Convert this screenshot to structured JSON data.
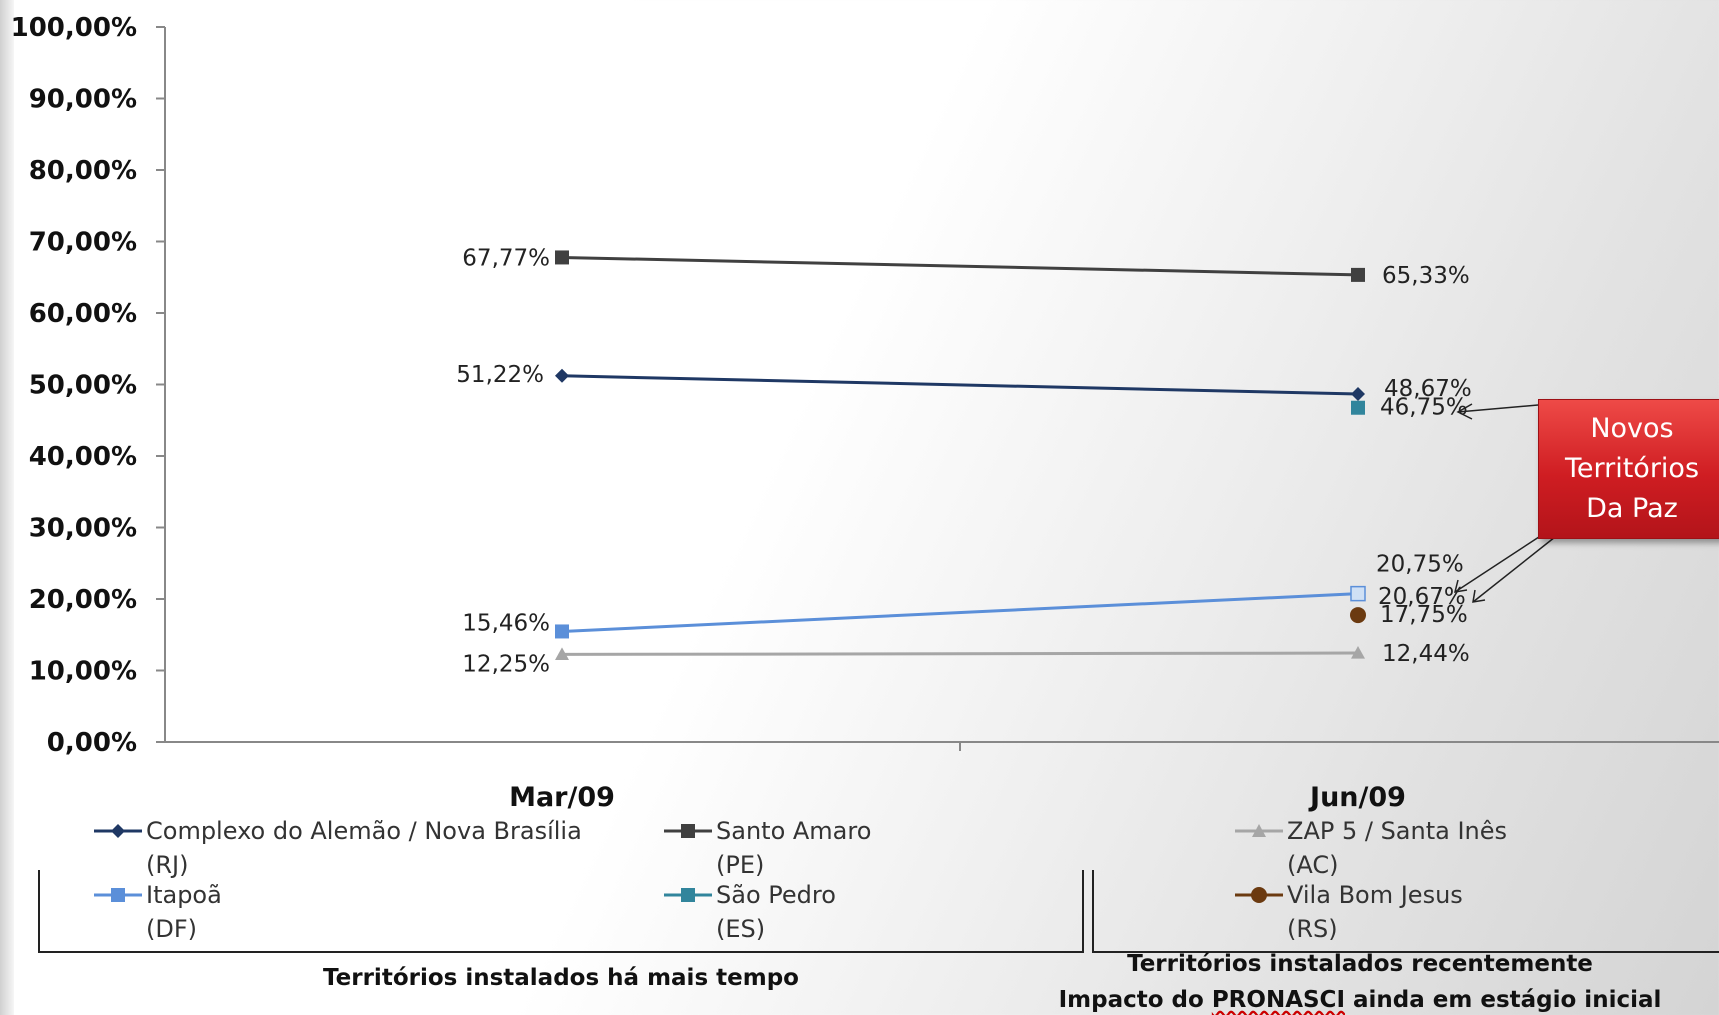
{
  "chart_data": {
    "type": "line",
    "title": "",
    "xlabel": "",
    "ylabel": "",
    "categories": [
      "Mar/09",
      "Jun/09"
    ],
    "ylim": [
      0,
      100
    ],
    "yticks": [
      "0,00%",
      "10,00%",
      "20,00%",
      "30,00%",
      "40,00%",
      "50,00%",
      "60,00%",
      "70,00%",
      "80,00%",
      "90,00%",
      "100,00%"
    ],
    "grid": false,
    "legend_position": "bottom",
    "series": [
      {
        "name": "Complexo do Alemão / Nova Brasília (RJ)",
        "values": [
          51.22,
          48.67
        ],
        "labels": [
          "51,22%",
          "48,67%"
        ],
        "color": "#1f3864",
        "marker": "diamond"
      },
      {
        "name": "Santo Amaro (PE)",
        "values": [
          67.77,
          65.33
        ],
        "labels": [
          "67,77%",
          "65,33%"
        ],
        "color": "#404040",
        "marker": "square"
      },
      {
        "name": "ZAP 5 / Santa Inês (AC)",
        "values": [
          12.25,
          12.44
        ],
        "labels": [
          "12,25%",
          "12,44%"
        ],
        "color": "#a6a6a6",
        "marker": "triangle"
      },
      {
        "name": "Itapoã (DF)",
        "values": [
          15.46,
          20.75
        ],
        "labels": [
          "15,46%",
          "20,75%"
        ],
        "color": "#5b8fd9",
        "marker": "square"
      },
      {
        "name": "São Pedro (ES)",
        "values": [
          null,
          46.75
        ],
        "labels": [
          "",
          "46,75%"
        ],
        "color": "#31859c",
        "marker": "square"
      },
      {
        "name": "Vila Bom Jesus (RS)",
        "values": [
          null,
          17.75
        ],
        "labels": [
          "",
          "17,75%"
        ],
        "color": "#6b3a10",
        "marker": "circle"
      }
    ],
    "extra_point_labels": [
      {
        "category": "Jun/09",
        "label": "20,67%"
      }
    ],
    "annotation": {
      "text": "Novos\nTerritórios\nDa Paz",
      "color": "#d32027"
    }
  },
  "legend": [
    {
      "label": "Complexo do Alemão / Nova Brasília\n(RJ)",
      "color": "#1f3864",
      "marker": "diamond"
    },
    {
      "label": "Santo Amaro\n(PE)",
      "color": "#404040",
      "marker": "square"
    },
    {
      "label": "ZAP 5 / Santa Inês\n(AC)",
      "color": "#a6a6a6",
      "marker": "triangle"
    },
    {
      "label": "Itapoã\n(DF)",
      "color": "#5b8fd9",
      "marker": "square"
    },
    {
      "label": "São Pedro\n(ES)",
      "color": "#31859c",
      "marker": "square"
    },
    {
      "label": "Vila Bom Jesus\n(RS)",
      "color": "#6b3a10",
      "marker": "circle"
    }
  ],
  "groups": {
    "older": "Territórios instalados há mais tempo",
    "recent_line1": "Territórios instalados recentemente",
    "recent_line2_prefix": "Impacto do ",
    "recent_line2_underlined": "PRONASCI",
    "recent_line2_suffix": " ainda em estágio inicial"
  }
}
